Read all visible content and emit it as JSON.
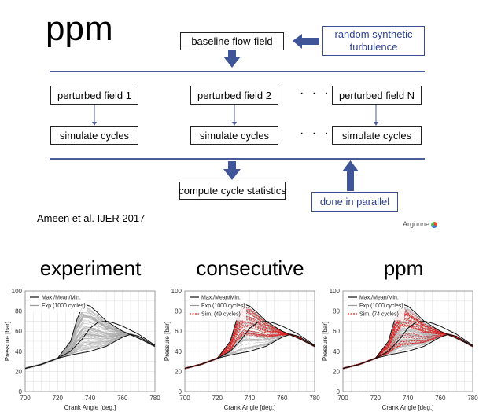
{
  "diagram": {
    "title": "ppm",
    "baseline_box": "baseline flow-field",
    "turbulence_box": "random synthetic turbulence",
    "perturbed": [
      "perturbed field 1",
      "perturbed field 2",
      "perturbed field N"
    ],
    "simulate": [
      "simulate cycles",
      "simulate cycles",
      "simulate cycles"
    ],
    "ellipsis": "· · ·",
    "compute_box": "compute cycle statistics",
    "parallel_box": "done in parallel",
    "reference": "Ameen et al. IJER 2017",
    "logo_text": "Argonne",
    "colors": {
      "accent_blue": "#3b4f8f",
      "arrow_blue": "#3f5597",
      "sim_red": "#e02020"
    }
  },
  "chart_data": [
    {
      "type": "line",
      "title": "experiment",
      "xlabel": "Crank Angle [deg.]",
      "ylabel": "Pressure [bar]",
      "xlim": [
        700,
        780
      ],
      "ylim": [
        0,
        100
      ],
      "xticks": [
        700,
        720,
        740,
        760,
        780
      ],
      "yticks": [
        0,
        20,
        40,
        60,
        80,
        100
      ],
      "legend": [
        "Max./Mean/Min.",
        "Exp.(1000 cycles)"
      ],
      "legend_placement": "top-left",
      "grid": true,
      "envelope": {
        "max": {
          "x": [
            700,
            710,
            720,
            728,
            732,
            736,
            740,
            745,
            750,
            760,
            770,
            780
          ],
          "y": [
            23,
            27,
            33,
            50,
            72,
            87,
            85,
            78,
            70,
            60,
            53,
            45
          ]
        },
        "mean": {
          "x": [
            700,
            710,
            720,
            728,
            735,
            740,
            745,
            750,
            755,
            760,
            770,
            780
          ],
          "y": [
            23,
            27,
            33,
            40,
            52,
            63,
            69,
            70,
            68,
            65,
            57,
            46
          ]
        },
        "min": {
          "x": [
            700,
            710,
            720,
            730,
            740,
            750,
            760,
            765,
            770,
            780
          ],
          "y": [
            23,
            27,
            33,
            37,
            40,
            45,
            54,
            57,
            55,
            45
          ]
        }
      }
    },
    {
      "type": "line",
      "title": "consecutive",
      "xlabel": "Crank Angle [deg.]",
      "ylabel": "Pressure [bar]",
      "xlim": [
        700,
        780
      ],
      "ylim": [
        0,
        100
      ],
      "xticks": [
        700,
        720,
        740,
        760,
        780
      ],
      "yticks": [
        0,
        20,
        40,
        60,
        80,
        100
      ],
      "legend": [
        "Max./Mean/Min.",
        "Exp.(1000 cycles)",
        "Sim. (49 cycles)"
      ],
      "legend_placement": "top-left",
      "grid": true,
      "sim_cycles": 49,
      "envelope": {
        "max": {
          "x": [
            700,
            710,
            720,
            728,
            732,
            736,
            740,
            745,
            750,
            760,
            770,
            780
          ],
          "y": [
            23,
            27,
            33,
            50,
            72,
            87,
            85,
            78,
            70,
            60,
            53,
            45
          ]
        },
        "mean": {
          "x": [
            700,
            710,
            720,
            728,
            735,
            740,
            745,
            750,
            755,
            760,
            770,
            780
          ],
          "y": [
            23,
            27,
            33,
            40,
            52,
            63,
            69,
            70,
            68,
            65,
            57,
            46
          ]
        },
        "min": {
          "x": [
            700,
            710,
            720,
            730,
            740,
            750,
            760,
            765,
            770,
            780
          ],
          "y": [
            23,
            27,
            33,
            37,
            40,
            45,
            54,
            57,
            55,
            45
          ]
        }
      }
    },
    {
      "type": "line",
      "title": "ppm",
      "xlabel": "Crank Angle [deg.]",
      "ylabel": "Pressure [bar]",
      "xlim": [
        700,
        780
      ],
      "ylim": [
        0,
        100
      ],
      "xticks": [
        700,
        720,
        740,
        760,
        780
      ],
      "yticks": [
        0,
        20,
        40,
        60,
        80,
        100
      ],
      "legend": [
        "Max./Mean/Min.",
        "Exp.(1000 cycles)",
        "Sim. (74 cycles)"
      ],
      "legend_placement": "top-left",
      "grid": true,
      "sim_cycles": 74,
      "envelope": {
        "max": {
          "x": [
            700,
            710,
            720,
            728,
            732,
            736,
            740,
            745,
            750,
            760,
            770,
            780
          ],
          "y": [
            23,
            27,
            33,
            50,
            72,
            87,
            85,
            78,
            70,
            60,
            53,
            45
          ]
        },
        "mean": {
          "x": [
            700,
            710,
            720,
            728,
            735,
            740,
            745,
            750,
            755,
            760,
            770,
            780
          ],
          "y": [
            23,
            27,
            33,
            40,
            52,
            63,
            69,
            70,
            68,
            65,
            57,
            46
          ]
        },
        "min": {
          "x": [
            700,
            710,
            720,
            730,
            740,
            750,
            760,
            765,
            770,
            780
          ],
          "y": [
            23,
            27,
            33,
            37,
            40,
            45,
            54,
            57,
            55,
            45
          ]
        }
      }
    }
  ]
}
